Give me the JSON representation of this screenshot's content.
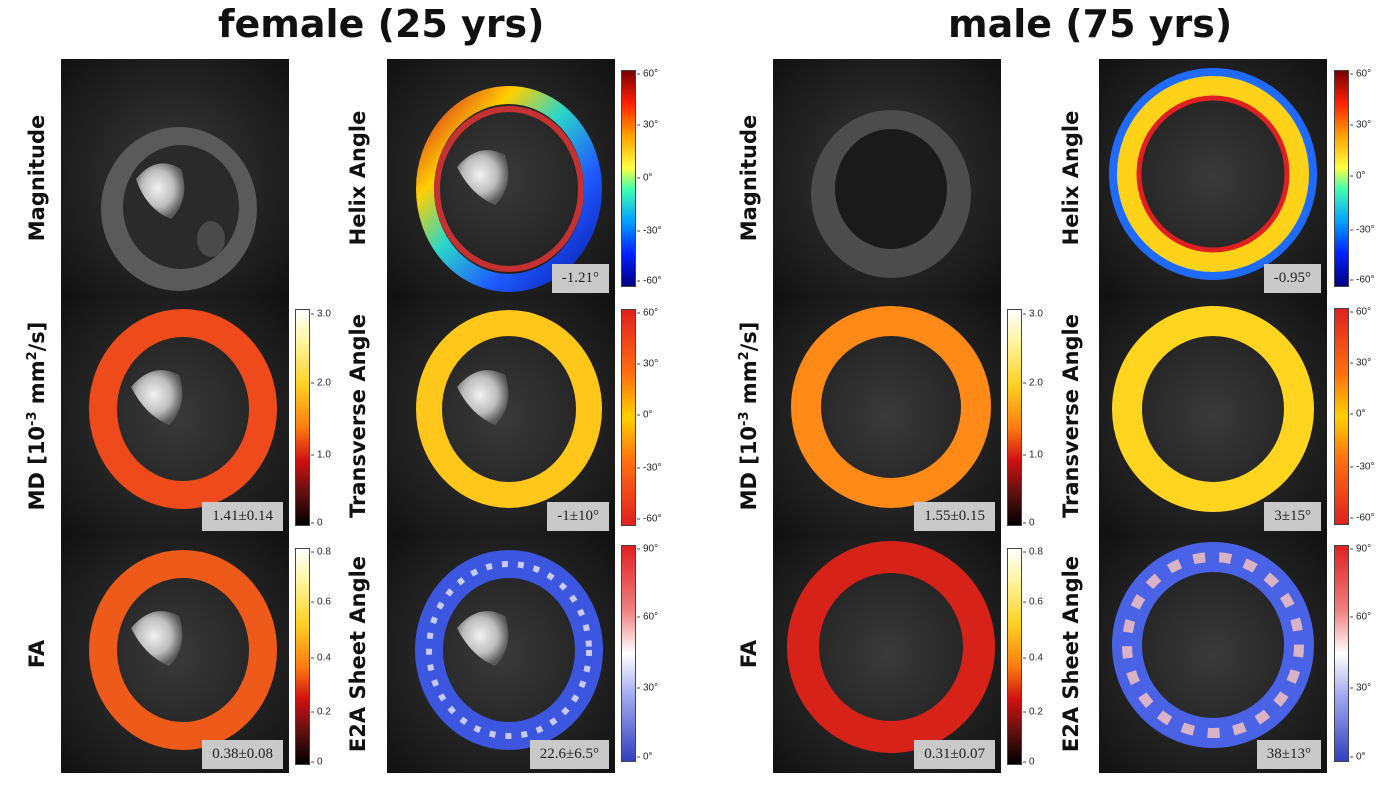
{
  "titles": {
    "left": "female (25 yrs)",
    "right": "male (75 yrs)"
  },
  "labels": {
    "magnitude": "Magnitude",
    "helix": "Helix Angle",
    "md_prefix": "MD [10",
    "md_exp": "-3",
    "md_mid": " mm",
    "md_exp2": "2",
    "md_suffix": "/s]",
    "transverse": "Transverse Angle",
    "fa": "FA",
    "e2a": "E2A Sheet Angle"
  },
  "female": {
    "helix_value": "-1.21°",
    "md_value": "1.41±0.14",
    "transverse_value": "-1±10°",
    "fa_value": "0.38±0.08",
    "e2a_value": "22.6±6.5°"
  },
  "male": {
    "helix_value": "-0.95°",
    "md_value": "1.55±0.15",
    "transverse_value": "3±15°",
    "fa_value": "0.31±0.07",
    "e2a_value": "38±13°"
  },
  "colorbars": {
    "helix_ticks": [
      "60°",
      "30°",
      "0°",
      "-30°",
      "-60°"
    ],
    "md_ticks": [
      "3.0",
      "2.0",
      "1.0",
      "0"
    ],
    "transverse_ticks": [
      "60°",
      "30°",
      "0°",
      "-30°",
      "-60°"
    ],
    "fa_ticks": [
      "0.8",
      "0.6",
      "0.4",
      "0.2",
      "0"
    ],
    "e2a_ticks": [
      "90°",
      "60°",
      "30°",
      "0°"
    ]
  }
}
